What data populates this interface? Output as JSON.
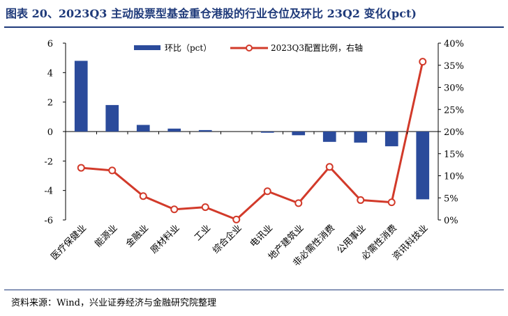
{
  "title": "图表 20、2023Q3 主动股票型基金重仓港股的行业仓位及环比 23Q2 变化(pct)",
  "source": "资料来源：Wind，兴业证券经济与金融研究院整理",
  "colors": {
    "bar": "#2b4b9b",
    "line": "#d23a2a",
    "title": "#1f3a7a"
  },
  "chart_data": {
    "type": "bar",
    "categories": [
      "医疗保健业",
      "能源业",
      "金融业",
      "原材料业",
      "工业",
      "综合企业",
      "电讯业",
      "地产建筑业",
      "非必需性消费",
      "公用事业",
      "必需性消费",
      "资讯科技业"
    ],
    "series": [
      {
        "name": "环比（pct）",
        "type": "bar",
        "axis": "left",
        "values": [
          4.8,
          1.8,
          0.45,
          0.2,
          0.1,
          0.0,
          -0.08,
          -0.25,
          -0.7,
          -0.75,
          -1.0,
          -4.6
        ]
      },
      {
        "name": "2023Q3配置比例，右轴",
        "type": "line",
        "axis": "right",
        "values": [
          11.8,
          11.2,
          5.4,
          2.4,
          2.9,
          0.1,
          6.5,
          3.8,
          12.0,
          4.5,
          4.0,
          35.8
        ]
      }
    ],
    "y_left": {
      "min": -6,
      "max": 6,
      "ticks": [
        "6",
        "4",
        "2",
        "0",
        "-2",
        "-4",
        "-6"
      ]
    },
    "y_right": {
      "min": 0,
      "max": 40,
      "ticks": [
        "40%",
        "35%",
        "30%",
        "25%",
        "20%",
        "15%",
        "10%",
        "5%",
        "0%"
      ]
    },
    "legend": {
      "position": "top",
      "items": [
        "环比（pct）",
        "2023Q3配置比例，右轴"
      ]
    },
    "grid": false
  }
}
